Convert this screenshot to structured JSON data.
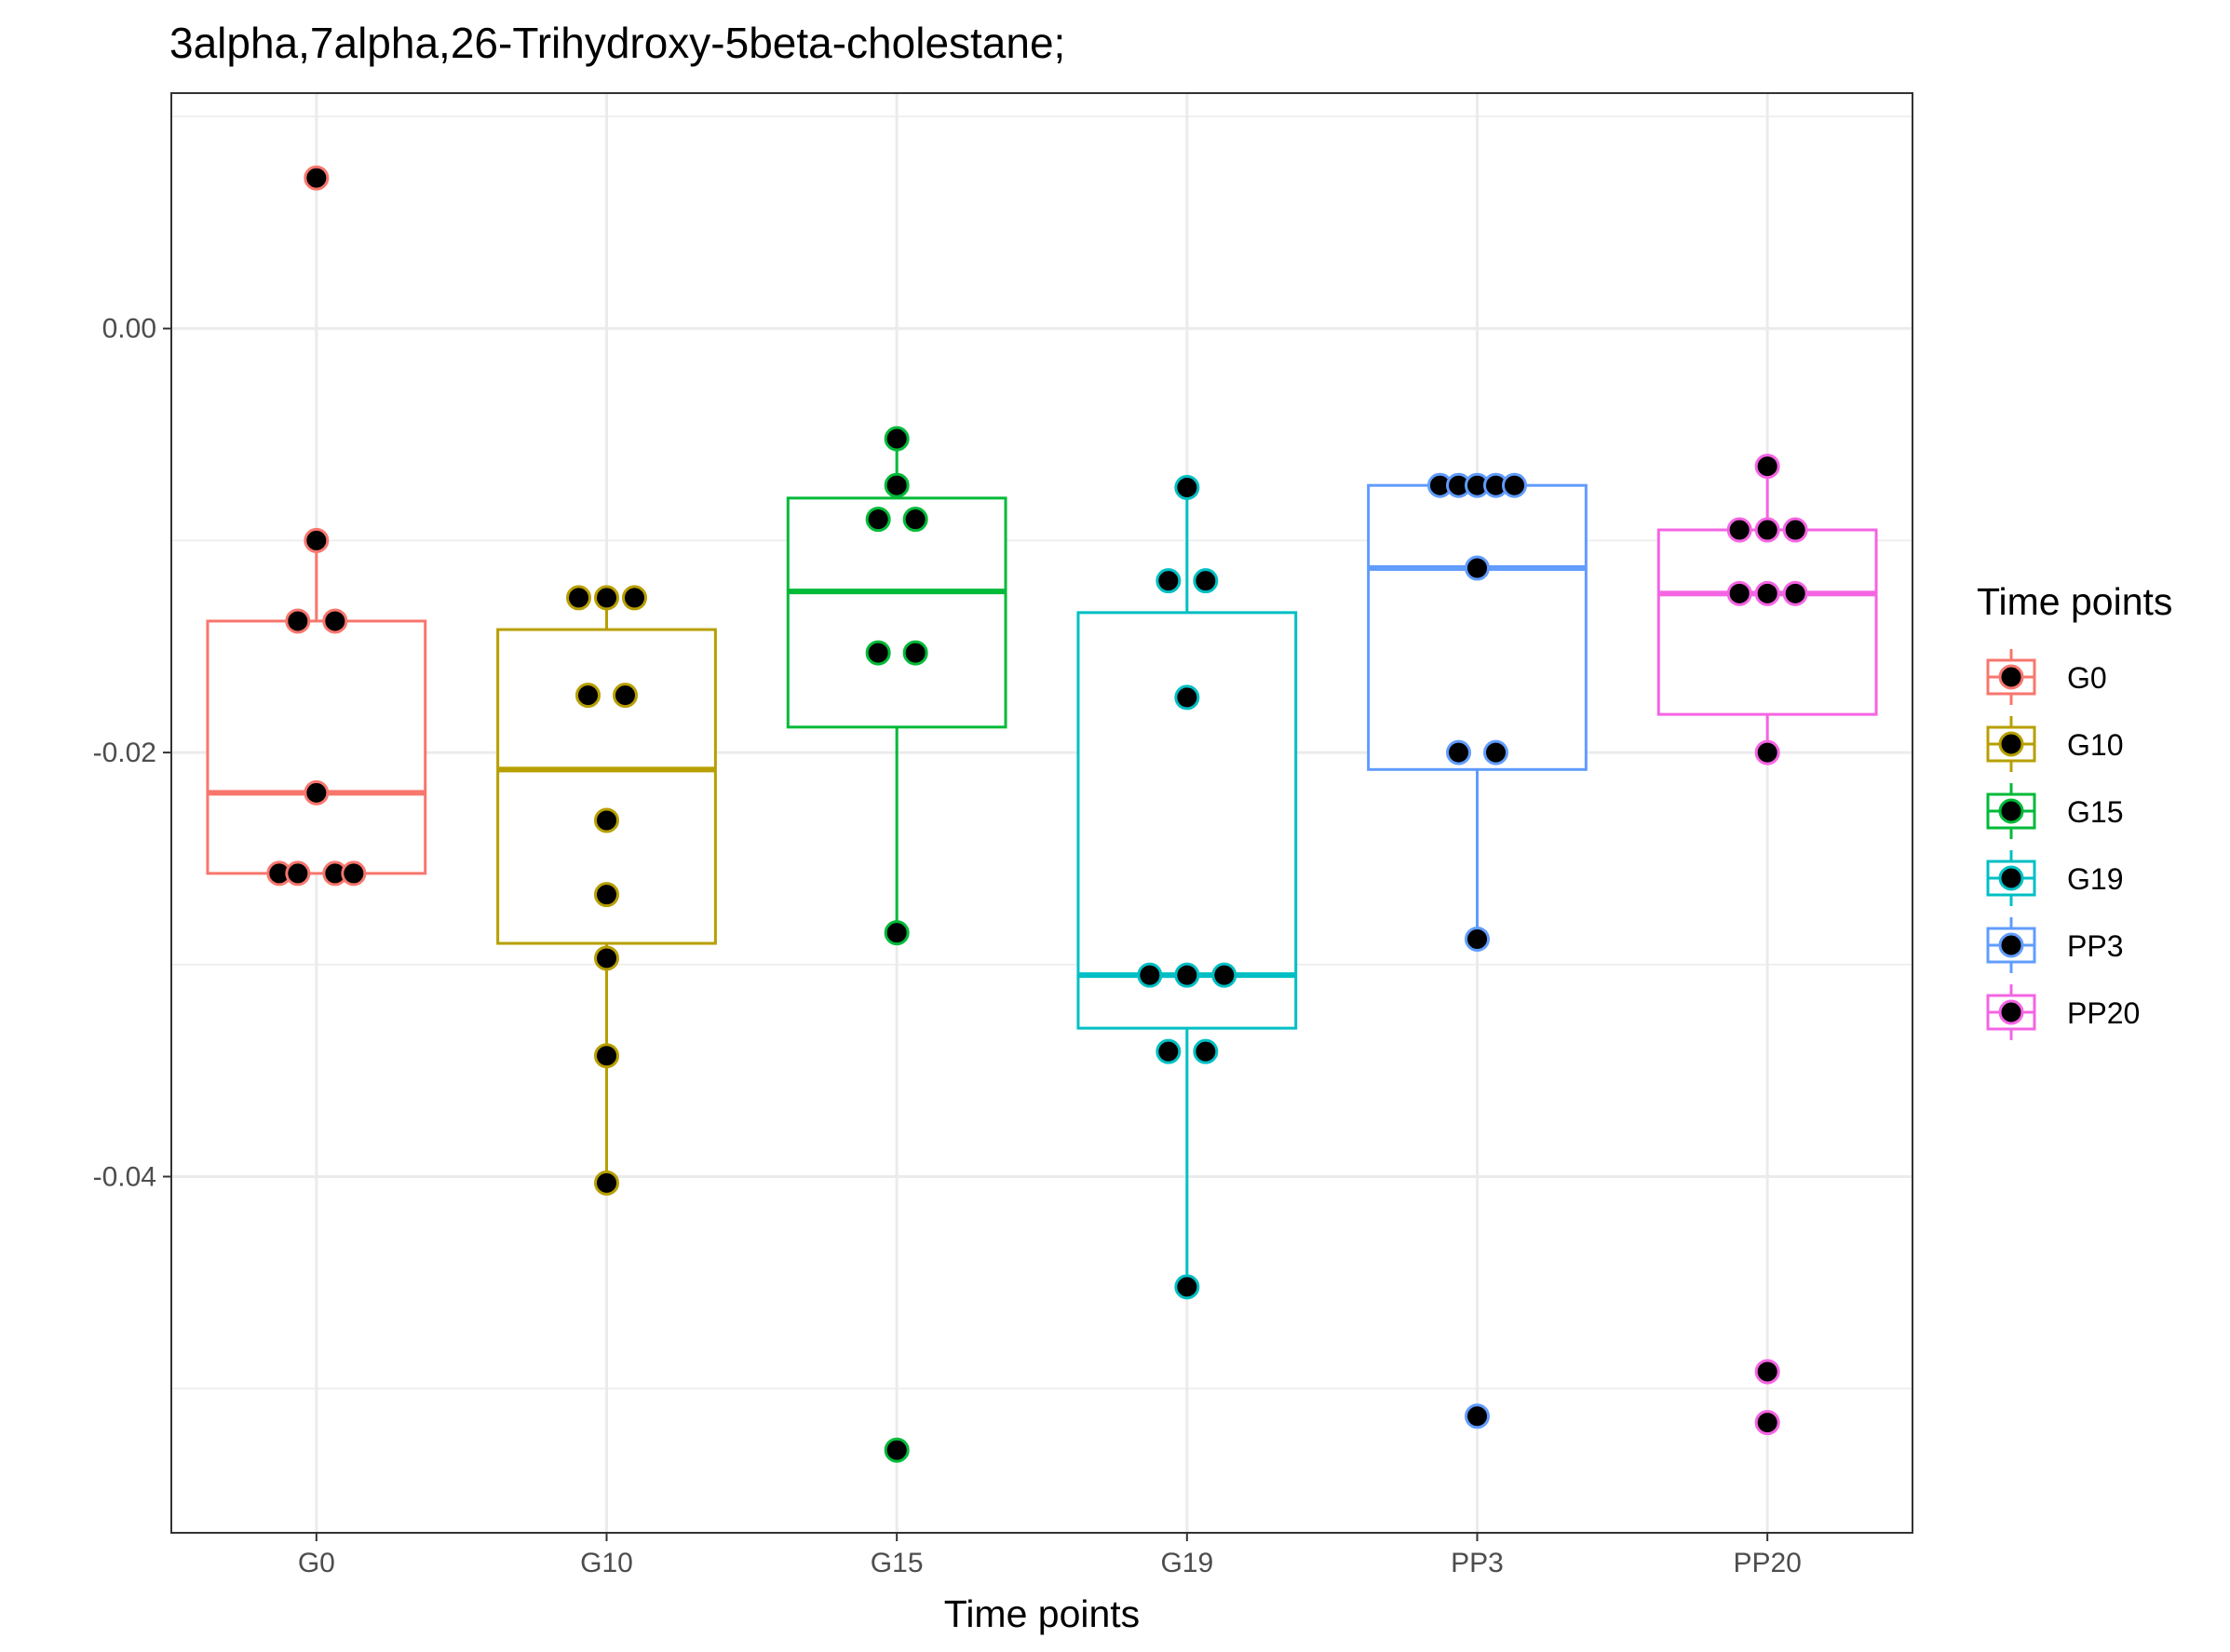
{
  "chart_data": {
    "type": "boxplot",
    "title": "3alpha,7alpha,26-Trihydroxy-5beta-cholestane;",
    "xlabel": "Time points",
    "ylabel": "",
    "ylim": [
      -0.0568,
      0.0111
    ],
    "yticks": [
      {
        "value": 0.0,
        "label": "0.00"
      },
      {
        "value": -0.02,
        "label": "-0.02"
      },
      {
        "value": -0.04,
        "label": "-0.04"
      }
    ],
    "y_minor_grid": [
      0.01,
      -0.01,
      -0.03,
      -0.05
    ],
    "grid": true,
    "legend": {
      "title": "Time points",
      "position": "right"
    },
    "categories": [
      "G0",
      "G10",
      "G15",
      "G19",
      "PP3",
      "PP20"
    ],
    "series": [
      {
        "name": "G0",
        "color": "#F8766D",
        "box": {
          "q1": -0.0257,
          "median": -0.0219,
          "q3": -0.0138,
          "whisker_low": -0.0257,
          "whisker_high": -0.01
        },
        "points": [
          {
            "offset": 0,
            "y": 0.0071
          },
          {
            "offset": 0,
            "y": -0.01
          },
          {
            "offset": -1,
            "y": -0.0138
          },
          {
            "offset": 1,
            "y": -0.0138
          },
          {
            "offset": 0,
            "y": -0.0219
          },
          {
            "offset": -2,
            "y": -0.0257
          },
          {
            "offset": -1,
            "y": -0.0257
          },
          {
            "offset": 1,
            "y": -0.0257
          },
          {
            "offset": 2,
            "y": -0.0257
          }
        ]
      },
      {
        "name": "G10",
        "color": "#B79F00",
        "box": {
          "q1": -0.029,
          "median": -0.0208,
          "q3": -0.0142,
          "whisker_low": -0.0403,
          "whisker_high": -0.0127
        },
        "points": [
          {
            "offset": -1.5,
            "y": -0.0127
          },
          {
            "offset": 0,
            "y": -0.0127
          },
          {
            "offset": 1.5,
            "y": -0.0127
          },
          {
            "offset": -1,
            "y": -0.0173
          },
          {
            "offset": 1,
            "y": -0.0173
          },
          {
            "offset": 0,
            "y": -0.0232
          },
          {
            "offset": 0,
            "y": -0.0267
          },
          {
            "offset": 0,
            "y": -0.0297
          },
          {
            "offset": 0,
            "y": -0.0343
          },
          {
            "offset": 0,
            "y": -0.0403
          }
        ]
      },
      {
        "name": "G15",
        "color": "#00BA38",
        "box": {
          "q1": -0.0188,
          "median": -0.0124,
          "q3": -0.008,
          "whisker_low": -0.0285,
          "whisker_high": -0.0052
        },
        "points": [
          {
            "offset": 0,
            "y": -0.0052
          },
          {
            "offset": 0,
            "y": -0.0074
          },
          {
            "offset": -1,
            "y": -0.009
          },
          {
            "offset": 1,
            "y": -0.009
          },
          {
            "offset": -1,
            "y": -0.0153
          },
          {
            "offset": 1,
            "y": -0.0153
          },
          {
            "offset": 0,
            "y": -0.0285
          },
          {
            "offset": 0,
            "y": -0.0529
          }
        ]
      },
      {
        "name": "G19",
        "color": "#00BFC4",
        "box": {
          "q1": -0.033,
          "median": -0.0305,
          "q3": -0.0134,
          "whisker_low": -0.0452,
          "whisker_high": -0.0075
        },
        "points": [
          {
            "offset": 0,
            "y": -0.0075
          },
          {
            "offset": -1,
            "y": -0.0119
          },
          {
            "offset": 1,
            "y": -0.0119
          },
          {
            "offset": 0,
            "y": -0.0174
          },
          {
            "offset": -2,
            "y": -0.0305
          },
          {
            "offset": 0,
            "y": -0.0305
          },
          {
            "offset": 2,
            "y": -0.0305
          },
          {
            "offset": -1,
            "y": -0.0341
          },
          {
            "offset": 1,
            "y": -0.0341
          },
          {
            "offset": 0,
            "y": -0.0452
          }
        ]
      },
      {
        "name": "PP3",
        "color": "#619CFF",
        "box": {
          "q1": -0.0208,
          "median": -0.0113,
          "q3": -0.0074,
          "whisker_low": -0.0288,
          "whisker_high": -0.0074
        },
        "points": [
          {
            "offset": -2,
            "y": -0.0074
          },
          {
            "offset": -1,
            "y": -0.0074
          },
          {
            "offset": 0,
            "y": -0.0074
          },
          {
            "offset": 1,
            "y": -0.0074
          },
          {
            "offset": 2,
            "y": -0.0074
          },
          {
            "offset": 0,
            "y": -0.0113
          },
          {
            "offset": -1,
            "y": -0.02
          },
          {
            "offset": 1,
            "y": -0.02
          },
          {
            "offset": 0,
            "y": -0.0288
          },
          {
            "offset": 0,
            "y": -0.0513
          }
        ]
      },
      {
        "name": "PP20",
        "color": "#F564E3",
        "box": {
          "q1": -0.0182,
          "median": -0.0125,
          "q3": -0.0095,
          "whisker_low": -0.02,
          "whisker_high": -0.0065
        },
        "points": [
          {
            "offset": 0,
            "y": -0.0065
          },
          {
            "offset": -1.5,
            "y": -0.0095
          },
          {
            "offset": 0,
            "y": -0.0095
          },
          {
            "offset": 1.5,
            "y": -0.0095
          },
          {
            "offset": -1.5,
            "y": -0.0125
          },
          {
            "offset": 0,
            "y": -0.0125
          },
          {
            "offset": 1.5,
            "y": -0.0125
          },
          {
            "offset": 0,
            "y": -0.02
          },
          {
            "offset": 0,
            "y": -0.0492
          },
          {
            "offset": 0,
            "y": -0.0516
          }
        ]
      }
    ]
  }
}
